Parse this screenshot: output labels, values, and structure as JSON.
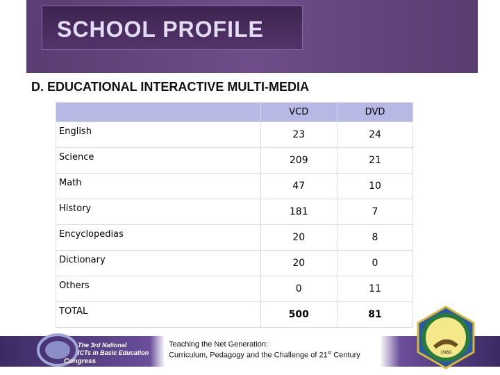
{
  "header": {
    "title": "SCHOOL PROFILE"
  },
  "section": {
    "title": "D. EDUCATIONAL INTERACTIVE MULTI-MEDIA"
  },
  "table": {
    "columns": [
      "VCD",
      "DVD"
    ],
    "rows": [
      [
        "English",
        23,
        24
      ],
      [
        "Science",
        209,
        21
      ],
      [
        "Math",
        47,
        10
      ],
      [
        "History",
        181,
        7
      ],
      [
        "Encyclopedias",
        20,
        8
      ],
      [
        "Dictionary",
        20,
        0
      ],
      [
        "Others",
        0,
        11
      ],
      [
        "TOTAL",
        500,
        81
      ]
    ]
  },
  "footer": {
    "line1": "Teaching the Net Generation:",
    "line2": "Curriculum, Pedagogy and the Challenge of 21",
    "sup": "st",
    "line2_end": " Century",
    "logo_left": {
      "line1": "The 3rd National",
      "line2": "ICTs in Basic Education",
      "line3": "Congress"
    },
    "logo_right": {
      "year": "1980"
    }
  }
}
